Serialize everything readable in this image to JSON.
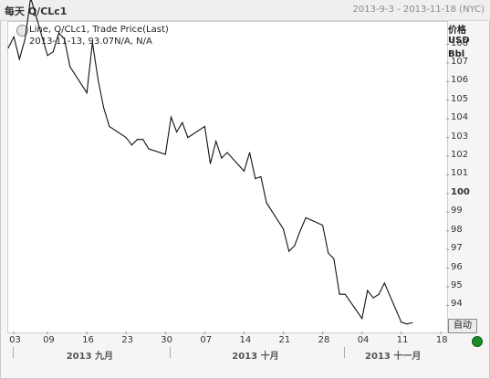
{
  "header": {
    "title": "每天 Q/CLc1",
    "range": "2013-9-3 - 2013-11-18 (NYC)"
  },
  "legend": {
    "line1": "Line, Q/CLc1, Trade Price(Last)",
    "line2": "2013-11-13, 93.07N/A, N/A"
  },
  "y_axis_label": [
    "价格",
    "USD",
    "Bbl"
  ],
  "controls": {
    "auto_button": "自动"
  },
  "status_color": "#1e8a2a",
  "chart_data": {
    "type": "line",
    "title": "",
    "xlabel": "",
    "ylabel": "价格 USD Bbl",
    "ylim": [
      92.6,
      109.2
    ],
    "yticks": [
      "94",
      "95",
      "96",
      "97",
      "98",
      "99",
      "100",
      "101",
      "102",
      "103",
      "104",
      "105",
      "106",
      "107",
      "108"
    ],
    "ytick_bold": [
      "100"
    ],
    "xlim": [
      "2013-09-02",
      "2013-11-19"
    ],
    "xticks": [
      {
        "date": "2013-09-03",
        "label": "03"
      },
      {
        "date": "2013-09-09",
        "label": "09"
      },
      {
        "date": "2013-09-16",
        "label": "16"
      },
      {
        "date": "2013-09-23",
        "label": "23"
      },
      {
        "date": "2013-09-30",
        "label": "30"
      },
      {
        "date": "2013-10-07",
        "label": "07"
      },
      {
        "date": "2013-10-14",
        "label": "14"
      },
      {
        "date": "2013-10-21",
        "label": "21"
      },
      {
        "date": "2013-10-28",
        "label": "28"
      },
      {
        "date": "2013-11-04",
        "label": "04"
      },
      {
        "date": "2013-11-11",
        "label": "11"
      },
      {
        "date": "2013-11-18",
        "label": "18"
      }
    ],
    "months": [
      {
        "label": "2013 九月",
        "start": "2013-09-03",
        "end": "2013-09-30"
      },
      {
        "label": "2013 十月",
        "start": "2013-10-01",
        "end": "2013-10-31"
      },
      {
        "label": "2013 十一月",
        "start": "2013-11-01",
        "end": "2013-11-18"
      }
    ],
    "series": [
      {
        "color": "#111111",
        "x": [
          "2013-09-02",
          "2013-09-03",
          "2013-09-04",
          "2013-09-05",
          "2013-09-06",
          "2013-09-09",
          "2013-09-10",
          "2013-09-11",
          "2013-09-12",
          "2013-09-13",
          "2013-09-16",
          "2013-09-17",
          "2013-09-18",
          "2013-09-19",
          "2013-09-20",
          "2013-09-23",
          "2013-09-24",
          "2013-09-25",
          "2013-09-26",
          "2013-09-27",
          "2013-09-30",
          "2013-10-01",
          "2013-10-02",
          "2013-10-03",
          "2013-10-04",
          "2013-10-07",
          "2013-10-08",
          "2013-10-09",
          "2013-10-10",
          "2013-10-11",
          "2013-10-14",
          "2013-10-15",
          "2013-10-16",
          "2013-10-17",
          "2013-10-18",
          "2013-10-21",
          "2013-10-22",
          "2013-10-23",
          "2013-10-24",
          "2013-10-25",
          "2013-10-28",
          "2013-10-29",
          "2013-10-30",
          "2013-10-31",
          "2013-11-01",
          "2013-11-04",
          "2013-11-05",
          "2013-11-06",
          "2013-11-07",
          "2013-11-08",
          "2013-11-11",
          "2013-11-12",
          "2013-11-13"
        ],
        "values": [
          107.8,
          108.4,
          107.2,
          108.3,
          110.5,
          107.4,
          107.6,
          108.6,
          108.3,
          106.8,
          105.4,
          108.1,
          106.1,
          104.6,
          103.6,
          103.0,
          102.6,
          102.9,
          102.9,
          102.4,
          102.1,
          104.1,
          103.3,
          103.8,
          103.0,
          103.6,
          101.6,
          102.8,
          101.9,
          102.2,
          101.2,
          102.2,
          100.8,
          100.9,
          99.5,
          98.1,
          96.9,
          97.2,
          98.0,
          98.7,
          98.3,
          96.8,
          96.5,
          94.6,
          94.6,
          93.3,
          94.8,
          94.4,
          94.6,
          95.2,
          93.1,
          93.0,
          93.07
        ]
      }
    ]
  }
}
